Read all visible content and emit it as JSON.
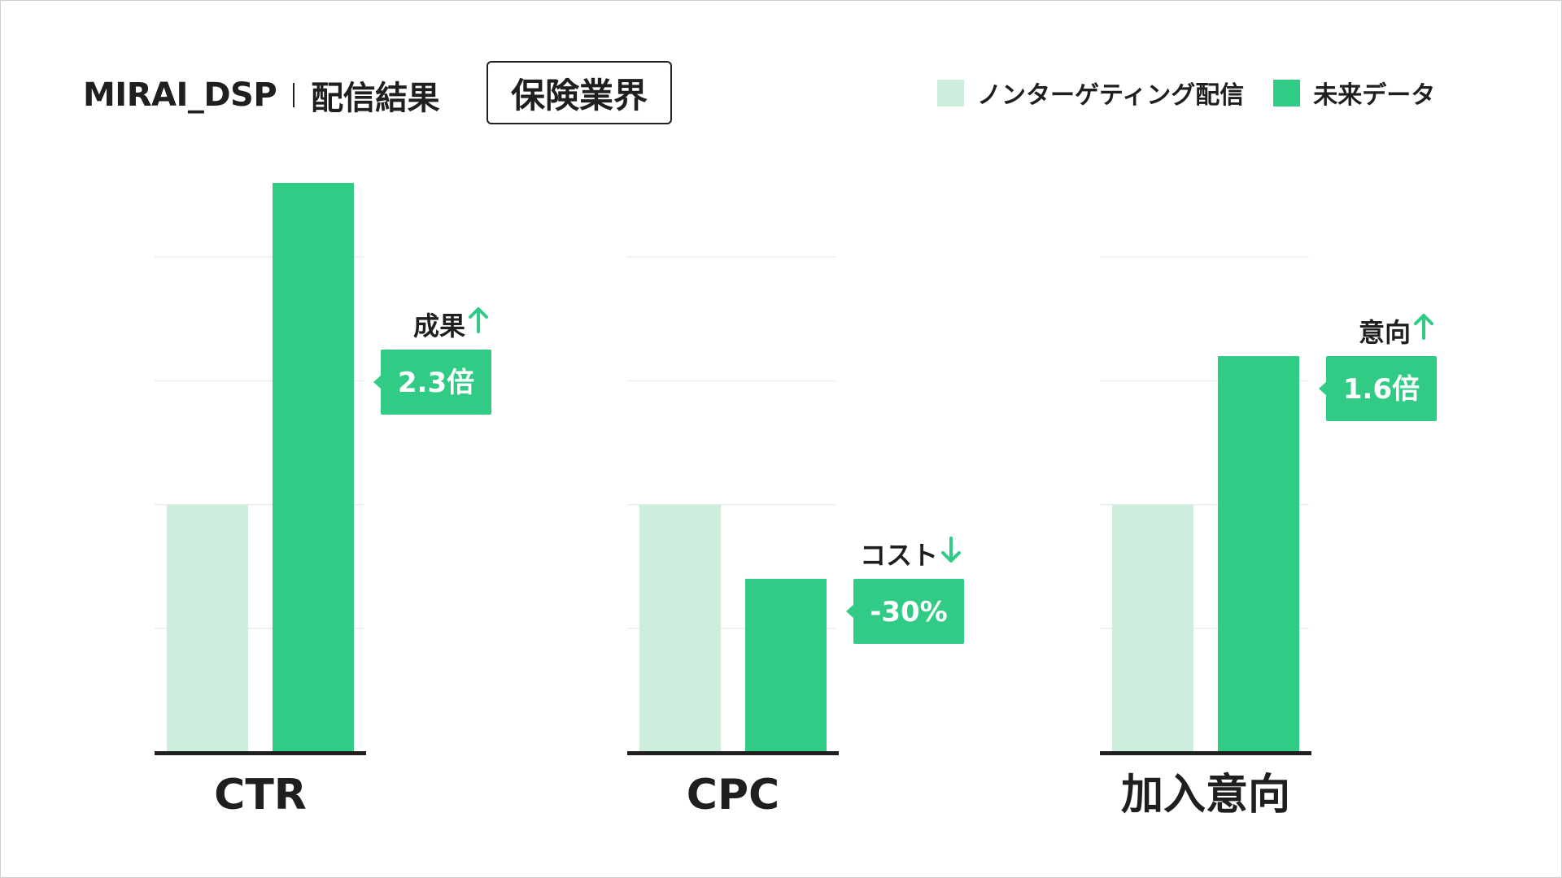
{
  "header": {
    "brand": "MIRAI_DSP",
    "subtitle": "配信結果",
    "industry": "保険業界"
  },
  "colors": {
    "non_targeting": "#cdeedd",
    "mirai": "#30cc86",
    "baseline": "#1f1f1f",
    "grid": "#eeeeee"
  },
  "chart_data": {
    "type": "bar",
    "categories": [
      "CTR",
      "CPC",
      "加入意向"
    ],
    "series": [
      {
        "name": "ノンターゲティング配信",
        "values": [
          1.0,
          1.0,
          1.0
        ]
      },
      {
        "name": "未来データ",
        "values": [
          2.3,
          0.7,
          1.6
        ]
      }
    ],
    "ylim": [
      0,
      2.3
    ],
    "grid": true,
    "legend_position": "top-right",
    "annotations": [
      {
        "category": "CTR",
        "label": "成果",
        "direction": "up",
        "value": "2.3倍"
      },
      {
        "category": "CPC",
        "label": "コスト",
        "direction": "down",
        "value": "-30%"
      },
      {
        "category": "加入意向",
        "label": "意向",
        "direction": "up",
        "value": "1.6倍"
      }
    ]
  }
}
